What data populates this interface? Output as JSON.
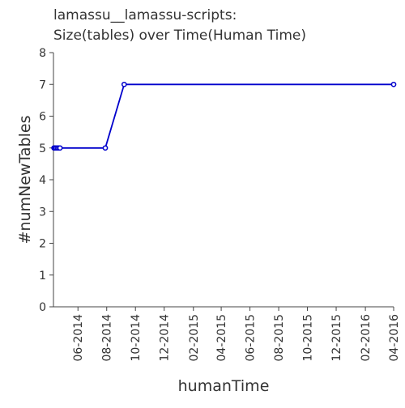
{
  "chart_data": {
    "type": "line",
    "title_lines": [
      "lamassu__lamassu-scripts:",
      "Size(tables) over Time(Human Time)"
    ],
    "xlabel": "humanTime",
    "ylabel": "#numNewTables",
    "x_axis_scale": "time",
    "x_ticks": [
      "06-2014",
      "08-2014",
      "10-2014",
      "12-2014",
      "02-2015",
      "04-2015",
      "06-2015",
      "08-2015",
      "10-2015",
      "12-2015",
      "02-2016",
      "04-2016"
    ],
    "x_range": [
      "2014-04-10",
      "2016-04-01"
    ],
    "ylim": [
      0,
      8
    ],
    "y_ticks": [
      0,
      1,
      2,
      3,
      4,
      5,
      6,
      7,
      8
    ],
    "grid": false,
    "series_color": "#0000cc",
    "series": [
      {
        "points": [
          {
            "x": "2014-04-11",
            "y": 5
          },
          {
            "x": "2014-04-13",
            "y": 5
          },
          {
            "x": "2014-04-15",
            "y": 5
          },
          {
            "x": "2014-04-18",
            "y": 5
          },
          {
            "x": "2014-04-21",
            "y": 5
          },
          {
            "x": "2014-04-24",
            "y": 5
          },
          {
            "x": "2014-07-29",
            "y": 5
          },
          {
            "x": "2014-09-07",
            "y": 7
          },
          {
            "x": "2016-04-01",
            "y": 7
          }
        ]
      }
    ]
  }
}
